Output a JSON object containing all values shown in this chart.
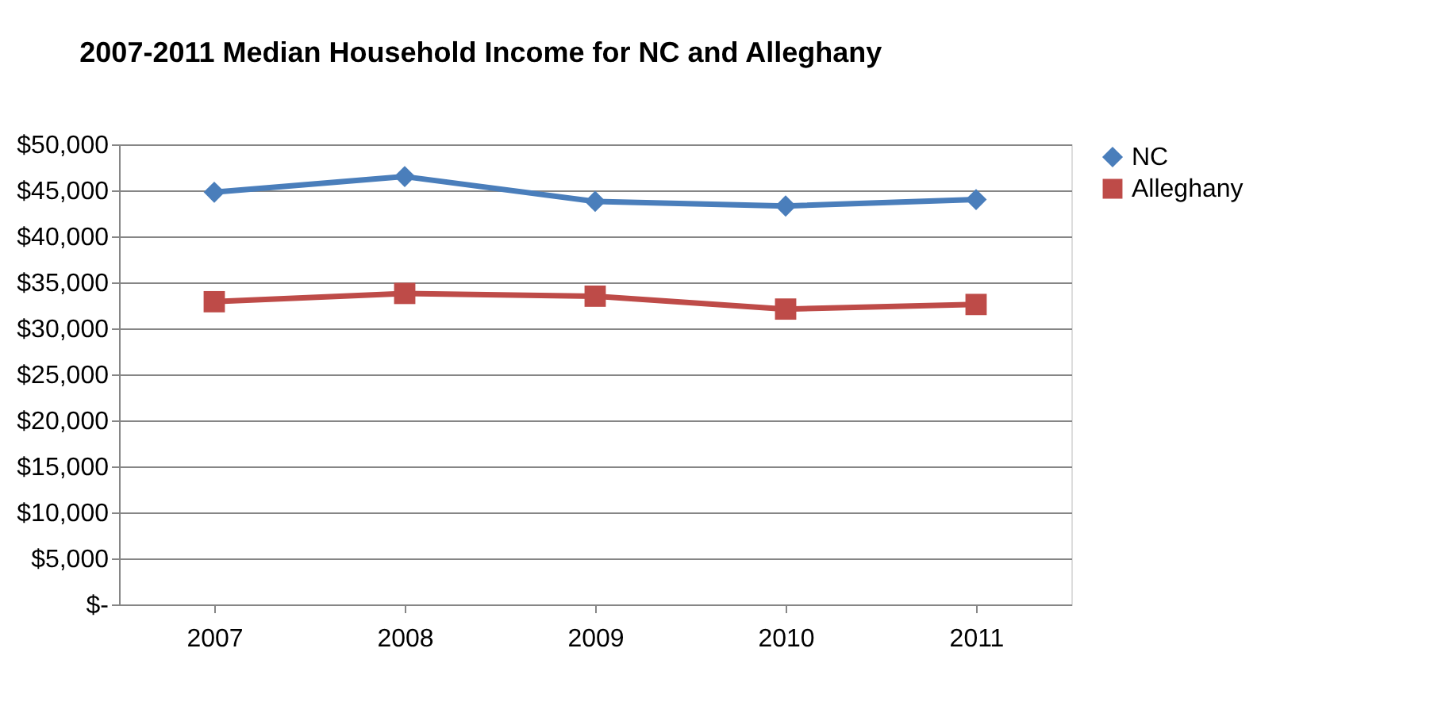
{
  "chart_data": {
    "type": "line",
    "title": "2007-2011 Median Household Income for NC and Alleghany",
    "categories": [
      "2007",
      "2008",
      "2009",
      "2010",
      "2011"
    ],
    "series": [
      {
        "name": "NC",
        "color": "#4a7ebb",
        "marker": "diamond",
        "values": [
          44800,
          46500,
          43800,
          43300,
          44000
        ]
      },
      {
        "name": "Alleghany",
        "color": "#be4b48",
        "marker": "square",
        "values": [
          32900,
          33800,
          33500,
          32100,
          32600
        ]
      }
    ],
    "ylim": [
      0,
      50000
    ],
    "yticks": [
      {
        "value": 0,
        "label": "$-"
      },
      {
        "value": 5000,
        "label": "$5,000"
      },
      {
        "value": 10000,
        "label": "$10,000"
      },
      {
        "value": 15000,
        "label": "$15,000"
      },
      {
        "value": 20000,
        "label": "$20,000"
      },
      {
        "value": 25000,
        "label": "$25,000"
      },
      {
        "value": 30000,
        "label": "$30,000"
      },
      {
        "value": 35000,
        "label": "$35,000"
      },
      {
        "value": 40000,
        "label": "$40,000"
      },
      {
        "value": 45000,
        "label": "$45,000"
      },
      {
        "value": 50000,
        "label": "$50,000"
      }
    ],
    "grid": "y",
    "legend": "right",
    "line_style": "solid"
  }
}
